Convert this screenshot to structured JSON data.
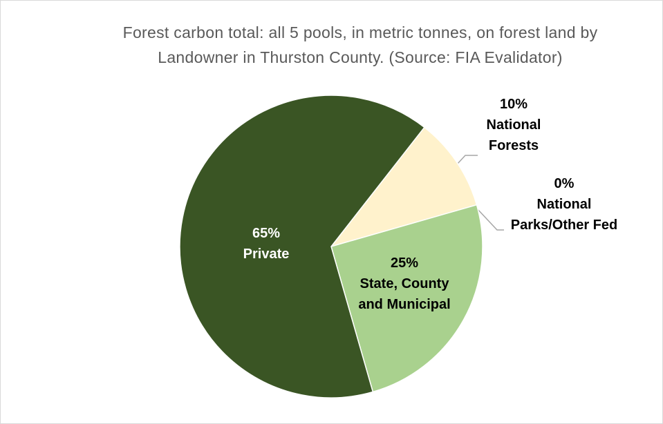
{
  "chart_data": {
    "type": "pie",
    "title": "Forest carbon total: all 5 pools, in metric tonnes, on forest land by Landowner in Thurston County. (Source: FIA Evalidator)",
    "categories": [
      "National Forests",
      "National Parks/Other Fed",
      "State, County and Municipal",
      "Private"
    ],
    "values": [
      10,
      0,
      25,
      65
    ],
    "value_labels": [
      "10%",
      "0%",
      "25%",
      "65%"
    ],
    "colors": [
      "#fff2cc",
      "#c5e0b4",
      "#a9d18e",
      "#3a5524"
    ]
  }
}
